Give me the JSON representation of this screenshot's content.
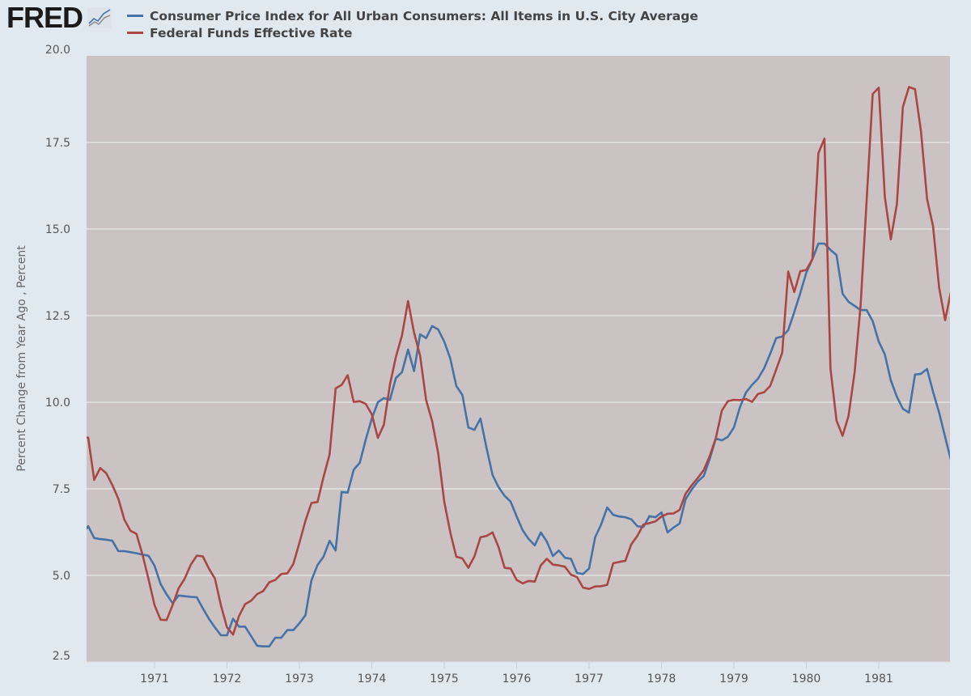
{
  "logo": {
    "text": "FRED",
    "icon": "fred-chart-icon"
  },
  "chart_data": {
    "type": "line",
    "title": "",
    "ylabel": "Percent Change from Year Ago , Percent",
    "xlabel": "",
    "ylim": [
      2.5,
      20
    ],
    "yticks": [
      "2.5",
      "5.0",
      "7.5",
      "10.0",
      "12.5",
      "15.0",
      "17.5",
      "20.0"
    ],
    "xticks": [
      "1971",
      "1972",
      "1973",
      "1974",
      "1975",
      "1976",
      "1977",
      "1978",
      "1979",
      "1980",
      "1981"
    ],
    "grid": "horizontal",
    "legend_position": "top-left",
    "frequency": "monthly",
    "x": [
      "1970-01",
      "1970-02",
      "1970-03",
      "1970-04",
      "1970-05",
      "1970-06",
      "1970-07",
      "1970-08",
      "1970-09",
      "1970-10",
      "1970-11",
      "1970-12",
      "1971-01",
      "1971-02",
      "1971-03",
      "1971-04",
      "1971-05",
      "1971-06",
      "1971-07",
      "1971-08",
      "1971-09",
      "1971-10",
      "1971-11",
      "1971-12",
      "1972-01",
      "1972-02",
      "1972-03",
      "1972-04",
      "1972-05",
      "1972-06",
      "1972-07",
      "1972-08",
      "1972-09",
      "1972-10",
      "1972-11",
      "1972-12",
      "1973-01",
      "1973-02",
      "1973-03",
      "1973-04",
      "1973-05",
      "1973-06",
      "1973-07",
      "1973-08",
      "1973-09",
      "1973-10",
      "1973-11",
      "1973-12",
      "1974-01",
      "1974-02",
      "1974-03",
      "1974-04",
      "1974-05",
      "1974-06",
      "1974-07",
      "1974-08",
      "1974-09",
      "1974-10",
      "1974-11",
      "1974-12",
      "1975-01",
      "1975-02",
      "1975-03",
      "1975-04",
      "1975-05",
      "1975-06",
      "1975-07",
      "1975-08",
      "1975-09",
      "1975-10",
      "1975-11",
      "1975-12",
      "1976-01",
      "1976-02",
      "1976-03",
      "1976-04",
      "1976-05",
      "1976-06",
      "1976-07",
      "1976-08",
      "1976-09",
      "1976-10",
      "1976-11",
      "1976-12",
      "1977-01",
      "1977-02",
      "1977-03",
      "1977-04",
      "1977-05",
      "1977-06",
      "1977-07",
      "1977-08",
      "1977-09",
      "1977-10",
      "1977-11",
      "1977-12",
      "1978-01",
      "1978-02",
      "1978-03",
      "1978-04",
      "1978-05",
      "1978-06",
      "1978-07",
      "1978-08",
      "1978-09",
      "1978-10",
      "1978-11",
      "1978-12",
      "1979-01",
      "1979-02",
      "1979-03",
      "1979-04",
      "1979-05",
      "1979-06",
      "1979-07",
      "1979-08",
      "1979-09",
      "1979-10",
      "1979-11",
      "1979-12",
      "1980-01",
      "1980-02",
      "1980-03",
      "1980-04",
      "1980-05",
      "1980-06",
      "1980-07",
      "1980-08",
      "1980-09",
      "1980-10",
      "1980-11",
      "1980-12",
      "1981-01",
      "1981-02",
      "1981-03",
      "1981-04",
      "1981-05",
      "1981-06",
      "1981-07",
      "1981-08",
      "1981-09",
      "1981-10",
      "1981-11",
      "1981-12",
      "1982-01"
    ],
    "series": [
      {
        "name": "Consumer Price Index for All Urban Consumers: All Items in U.S. City Average",
        "color": "#4572a7",
        "values": [
          6.2,
          6.42,
          6.08,
          6.05,
          6.03,
          6.0,
          5.7,
          5.7,
          5.67,
          5.64,
          5.6,
          5.57,
          5.28,
          4.75,
          4.45,
          4.2,
          4.42,
          4.4,
          4.38,
          4.37,
          4.05,
          3.75,
          3.5,
          3.27,
          3.27,
          3.75,
          3.52,
          3.52,
          3.25,
          2.97,
          2.95,
          2.95,
          3.2,
          3.2,
          3.42,
          3.42,
          3.62,
          3.85,
          4.86,
          5.3,
          5.54,
          6.0,
          5.72,
          7.41,
          7.39,
          8.05,
          8.25,
          8.92,
          9.53,
          10.0,
          10.12,
          10.07,
          10.7,
          10.87,
          11.52,
          10.9,
          11.96,
          11.85,
          12.2,
          12.1,
          11.75,
          11.26,
          10.47,
          10.21,
          9.27,
          9.2,
          9.53,
          8.69,
          7.9,
          7.55,
          7.3,
          7.13,
          6.7,
          6.3,
          6.05,
          5.87,
          6.24,
          5.98,
          5.56,
          5.72,
          5.51,
          5.48,
          5.07,
          5.04,
          5.2,
          6.1,
          6.47,
          6.96,
          6.75,
          6.7,
          6.68,
          6.62,
          6.42,
          6.4,
          6.71,
          6.68,
          6.82,
          6.24,
          6.38,
          6.5,
          7.2,
          7.48,
          7.71,
          7.87,
          8.37,
          8.95,
          8.9,
          9.0,
          9.27,
          9.86,
          10.28,
          10.5,
          10.68,
          10.98,
          11.4,
          11.85,
          11.9,
          12.08,
          12.6,
          13.15,
          13.74,
          14.13,
          14.58,
          14.58,
          14.4,
          14.25,
          13.13,
          12.9,
          12.78,
          12.66,
          12.66,
          12.34,
          11.75,
          11.38,
          10.63,
          10.16,
          9.81,
          9.7,
          10.8,
          10.82,
          10.96,
          10.3,
          9.7,
          9.0,
          8.3
        ]
      },
      {
        "name": "Federal Funds Effective Rate",
        "color": "#aa4643",
        "values": [
          8.98,
          8.98,
          7.76,
          8.1,
          7.95,
          7.61,
          7.21,
          6.61,
          6.29,
          6.2,
          5.6,
          4.9,
          4.14,
          3.72,
          3.71,
          4.15,
          4.63,
          4.91,
          5.31,
          5.57,
          5.55,
          5.2,
          4.91,
          4.14,
          3.5,
          3.29,
          3.83,
          4.17,
          4.27,
          4.46,
          4.55,
          4.8,
          4.87,
          5.04,
          5.06,
          5.33,
          5.94,
          6.58,
          7.09,
          7.12,
          7.84,
          8.49,
          10.4,
          10.5,
          10.78,
          10.01,
          10.03,
          9.95,
          9.65,
          8.97,
          9.35,
          10.51,
          11.31,
          11.93,
          12.92,
          12.01,
          11.34,
          10.06,
          9.45,
          8.53,
          7.13,
          6.24,
          5.54,
          5.49,
          5.22,
          5.55,
          6.1,
          6.14,
          6.24,
          5.82,
          5.22,
          5.2,
          4.87,
          4.77,
          4.84,
          4.82,
          5.29,
          5.48,
          5.31,
          5.29,
          5.25,
          5.02,
          4.95,
          4.65,
          4.61,
          4.68,
          4.69,
          4.73,
          5.35,
          5.39,
          5.42,
          5.9,
          6.14,
          6.47,
          6.51,
          6.56,
          6.7,
          6.78,
          6.79,
          6.89,
          7.36,
          7.6,
          7.81,
          8.04,
          8.45,
          8.96,
          9.76,
          10.03,
          10.07,
          10.06,
          10.09,
          10.01,
          10.24,
          10.29,
          10.47,
          10.94,
          11.43,
          13.77,
          13.18,
          13.78,
          13.82,
          14.13,
          17.19,
          17.61,
          10.98,
          9.47,
          9.03,
          9.61,
          10.87,
          12.81,
          15.85,
          18.9,
          19.08,
          15.93,
          14.7,
          15.72,
          18.52,
          19.1,
          19.04,
          17.82,
          15.87,
          15.08,
          13.31,
          12.37,
          13.22
        ]
      }
    ],
    "plot_background": "#cbc3c3"
  }
}
